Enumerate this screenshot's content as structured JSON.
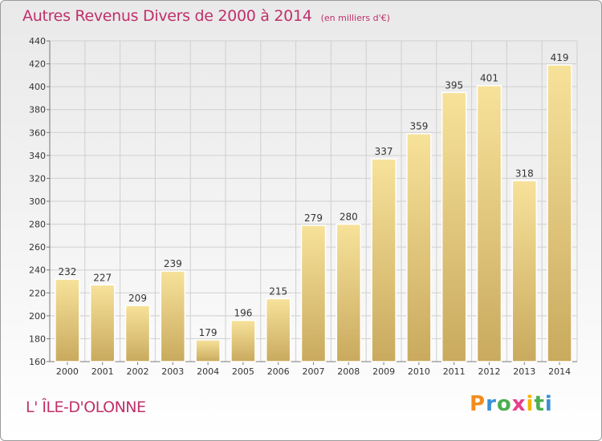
{
  "header": {
    "title": "Autres Revenus Divers de 2000 à 2014",
    "subtitle": "(en milliers d'€)"
  },
  "footer": {
    "location": "L' ÎLE-D'OLONNE",
    "brand_letters": [
      {
        "ch": "P",
        "color": "#f28c1e"
      },
      {
        "ch": "r",
        "color": "#3a8fd6"
      },
      {
        "ch": "o",
        "color": "#4caf50"
      },
      {
        "ch": "x",
        "color": "#e83e8c"
      },
      {
        "ch": "i",
        "color": "#f5b400"
      },
      {
        "ch": "t",
        "color": "#4caf50"
      },
      {
        "ch": "i",
        "color": "#3a8fd6"
      }
    ]
  },
  "colors": {
    "title": "#c0306a",
    "bar_top": "#f7e29a",
    "bar_bottom": "#c9aa5e",
    "grid": "#cfcfcf",
    "axis_text": "#333333"
  },
  "chart_data": {
    "type": "bar",
    "title": "Autres Revenus Divers de 2000 à 2014",
    "subtitle": "(en milliers d'€)",
    "xlabel": "",
    "ylabel": "",
    "categories": [
      "2000",
      "2001",
      "2002",
      "2003",
      "2004",
      "2005",
      "2006",
      "2007",
      "2008",
      "2009",
      "2010",
      "2011",
      "2012",
      "2013",
      "2014"
    ],
    "values": [
      232,
      227,
      209,
      239,
      179,
      196,
      215,
      279,
      280,
      337,
      359,
      395,
      401,
      318,
      419
    ],
    "ylim": [
      160,
      440
    ],
    "yticks": [
      160,
      180,
      200,
      220,
      240,
      260,
      280,
      300,
      320,
      340,
      360,
      380,
      400,
      420,
      440
    ],
    "grid": true,
    "data_labels": true
  }
}
